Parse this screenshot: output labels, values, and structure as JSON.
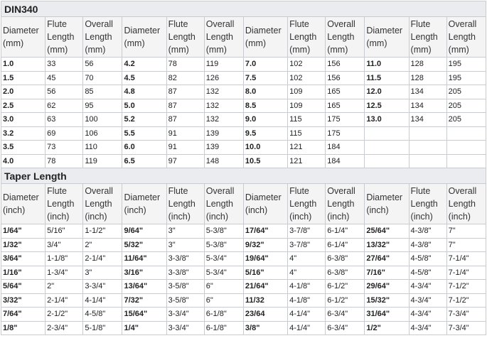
{
  "sections": [
    {
      "title": "DIN340",
      "headers": [
        "Diameter (mm)",
        "Flute Length (mm)",
        "Overall Length (mm)"
      ],
      "rows": [
        [
          "1.0",
          "33",
          "56",
          "4.2",
          "78",
          "119",
          "7.0",
          "102",
          "156",
          "11.0",
          "128",
          "195"
        ],
        [
          "1.5",
          "45",
          "70",
          "4.5",
          "82",
          "126",
          "7.5",
          "102",
          "156",
          "11.5",
          "128",
          "195"
        ],
        [
          "2.0",
          "56",
          "85",
          "4.8",
          "87",
          "132",
          "8.0",
          "109",
          "165",
          "12.0",
          "134",
          "205"
        ],
        [
          "2.5",
          "62",
          "95",
          "5.0",
          "87",
          "132",
          "8.5",
          "109",
          "165",
          "12.5",
          "134",
          "205"
        ],
        [
          "3.0",
          "63",
          "100",
          "5.2",
          "87",
          "132",
          "9.0",
          "115",
          "175",
          "13.0",
          "134",
          "205"
        ],
        [
          "3.2",
          "69",
          "106",
          "5.5",
          "91",
          "139",
          "9.5",
          "115",
          "175",
          null,
          null,
          null
        ],
        [
          "3.5",
          "73",
          "110",
          "6.0",
          "91",
          "139",
          "10.0",
          "121",
          "184",
          null,
          null,
          null
        ],
        [
          "4.0",
          "78",
          "119",
          "6.5",
          "97",
          "148",
          "10.5",
          "121",
          "184",
          null,
          null,
          null
        ]
      ]
    },
    {
      "title": "Taper Length",
      "headers": [
        "Diameter (inch)",
        "Flute Length (inch)",
        "Overall Length (inch)"
      ],
      "rows": [
        [
          "1/64\"",
          "5/16\"",
          "1-1/2\"",
          "9/64\"",
          "3\"",
          "5-3/8\"",
          "17/64\"",
          "3-7/8\"",
          "6-1/4\"",
          "25/64\"",
          "4-3/8\"",
          "7\""
        ],
        [
          "1/32\"",
          "3/4\"",
          "2\"",
          "5/32\"",
          "3\"",
          "5-3/8\"",
          "9/32\"",
          "3-7/8\"",
          "6-1/4\"",
          "13/32\"",
          "4-3/8\"",
          "7\""
        ],
        [
          "3/64\"",
          "1-1/8\"",
          "2-1/4\"",
          "11/64\"",
          "3-3/8\"",
          "5-3/4\"",
          "19/64\"",
          "4\"",
          "6-3/8\"",
          "27/64\"",
          "4-5/8\"",
          "7-1/4\""
        ],
        [
          "1/16\"",
          "1-3/4\"",
          "3\"",
          "3/16\"",
          "3-3/8\"",
          "5-3/4\"",
          "5/16\"",
          "4\"",
          "6-3/8\"",
          "7/16\"",
          "4-5/8\"",
          "7-1/4\""
        ],
        [
          "5/64\"",
          "2\"",
          "3-3/4\"",
          "13/64\"",
          "3-5/8\"",
          "6\"",
          "21/64\"",
          "4-1/8\"",
          "6-1/2\"",
          "29/64\"",
          "4-3/4\"",
          "7-1/2\""
        ],
        [
          "3/32\"",
          "2-1/4\"",
          "4-1/4\"",
          "7/32\"",
          "3-5/8\"",
          "6\"",
          "11/32",
          "4-1/8\"",
          "6-1/2\"",
          "15/32\"",
          "4-3/4\"",
          "7-1/2\""
        ],
        [
          "7/64\"",
          "2-1/2\"",
          "4-5/8\"",
          "15/64\"",
          "3-3/4\"",
          "6-1/8\"",
          "23/64",
          "4-1/4\"",
          "6-3/4\"",
          "31/64\"",
          "4-3/4\"",
          "7-3/4\""
        ],
        [
          "1/8\"",
          "2-3/4\"",
          "5-1/8\"",
          "1/4\"",
          "3-3/4\"",
          "6-1/8\"",
          "3/8\"",
          "4-1/4\"",
          "6-3/4\"",
          "1/2\"",
          "4-3/4\"",
          "7-3/4\""
        ]
      ]
    }
  ]
}
